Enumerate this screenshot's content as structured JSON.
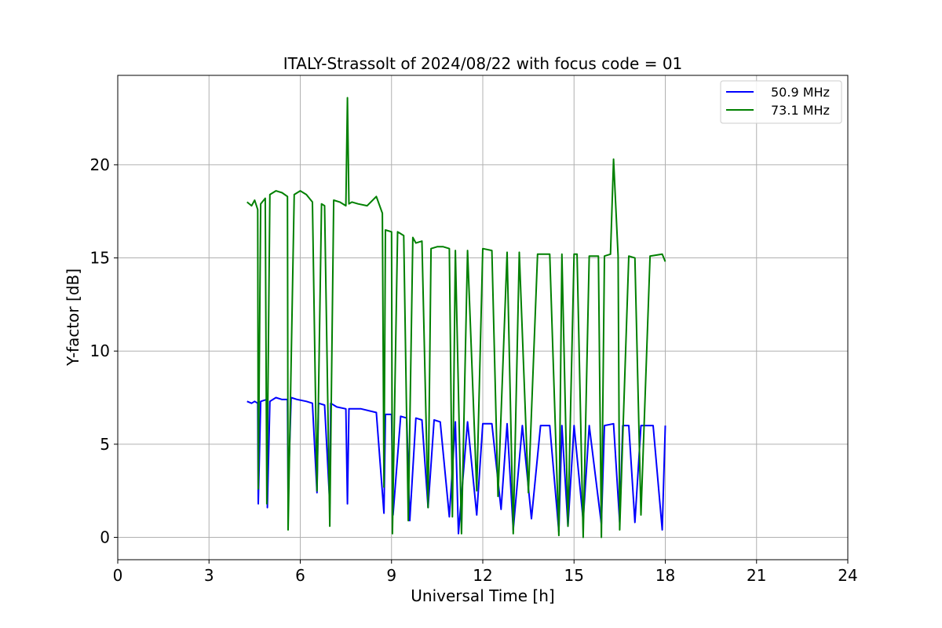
{
  "chart_data": {
    "type": "line",
    "title": "ITALY-Strassolt of 2024/08/22 with focus code = 01",
    "xlabel": "Universal Time [h]",
    "ylabel": "Y-factor [dB]",
    "xlim": [
      0,
      24
    ],
    "ylim": [
      -1.2,
      24.8
    ],
    "xticks": [
      0,
      3,
      6,
      9,
      12,
      15,
      18,
      21,
      24
    ],
    "yticks": [
      0,
      5,
      10,
      15,
      20
    ],
    "grid": true,
    "legend_position": "top-right",
    "series": [
      {
        "name": "50.9 MHz",
        "color": "#0000ff",
        "x": [
          4.25,
          4.4,
          4.5,
          4.6,
          4.62,
          4.7,
          4.9,
          4.92,
          5.0,
          5.2,
          5.4,
          5.58,
          5.6,
          5.7,
          5.9,
          6.2,
          6.4,
          6.55,
          6.6,
          6.8,
          6.97,
          7.0,
          7.2,
          7.5,
          7.55,
          7.6,
          8.0,
          8.5,
          8.75,
          8.8,
          9.0,
          9.05,
          9.3,
          9.5,
          9.6,
          9.8,
          10.0,
          10.2,
          10.4,
          10.6,
          10.9,
          11.1,
          11.2,
          11.5,
          11.8,
          12.0,
          12.3,
          12.6,
          12.8,
          13.0,
          13.3,
          13.6,
          13.9,
          14.2,
          14.5,
          14.6,
          14.8,
          15.0,
          15.3,
          15.5,
          15.9,
          16.0,
          16.3,
          16.5,
          16.6,
          16.8,
          17.0,
          17.2,
          17.6,
          17.9,
          18.0
        ],
        "y": [
          7.3,
          7.2,
          7.3,
          7.2,
          1.8,
          7.3,
          7.4,
          1.6,
          7.3,
          7.5,
          7.4,
          7.4,
          2.3,
          7.5,
          7.4,
          7.3,
          7.2,
          2.4,
          7.2,
          7.1,
          1.8,
          7.2,
          7.0,
          6.9,
          1.8,
          6.9,
          6.9,
          6.7,
          1.3,
          6.6,
          6.6,
          1.2,
          6.5,
          6.4,
          0.9,
          6.4,
          6.3,
          1.6,
          6.3,
          6.2,
          1.1,
          6.2,
          0.2,
          6.2,
          1.2,
          6.1,
          6.1,
          1.5,
          6.1,
          0.4,
          6.0,
          1.0,
          6.0,
          6.0,
          0.3,
          6.0,
          0.6,
          6.0,
          0.9,
          6.0,
          0.7,
          6.0,
          6.1,
          0.8,
          6.0,
          6.0,
          0.8,
          6.0,
          6.0,
          0.4,
          6.0
        ]
      },
      {
        "name": "73.1 MHz",
        "color": "#008000",
        "x": [
          4.25,
          4.4,
          4.5,
          4.6,
          4.62,
          4.7,
          4.85,
          4.9,
          5.0,
          5.2,
          5.4,
          5.58,
          5.6,
          5.8,
          6.0,
          6.2,
          6.4,
          6.55,
          6.7,
          6.8,
          6.97,
          7.1,
          7.3,
          7.5,
          7.55,
          7.6,
          7.7,
          7.9,
          8.2,
          8.5,
          8.7,
          8.75,
          8.8,
          9.0,
          9.03,
          9.2,
          9.4,
          9.55,
          9.7,
          9.8,
          10.0,
          10.2,
          10.3,
          10.5,
          10.7,
          10.9,
          11.0,
          11.1,
          11.3,
          11.5,
          11.8,
          12.0,
          12.3,
          12.5,
          12.8,
          13.0,
          13.2,
          13.5,
          13.8,
          14.0,
          14.2,
          14.5,
          14.6,
          14.8,
          15.0,
          15.1,
          15.3,
          15.5,
          15.8,
          15.9,
          16.0,
          16.2,
          16.3,
          16.45,
          16.5,
          16.8,
          17.0,
          17.2,
          17.5,
          17.9,
          18.0
        ],
        "y": [
          18.0,
          17.8,
          18.1,
          17.6,
          2.6,
          17.9,
          18.2,
          1.8,
          18.4,
          18.6,
          18.5,
          18.3,
          0.4,
          18.4,
          18.6,
          18.4,
          18.0,
          2.5,
          17.9,
          17.8,
          0.6,
          18.1,
          18.0,
          17.8,
          23.6,
          17.9,
          18.0,
          17.9,
          17.8,
          18.3,
          17.4,
          2.7,
          16.5,
          16.4,
          0.2,
          16.4,
          16.2,
          0.9,
          16.1,
          15.8,
          15.9,
          1.6,
          15.5,
          15.6,
          15.6,
          15.5,
          1.1,
          15.4,
          0.2,
          15.4,
          2.5,
          15.5,
          15.4,
          2.2,
          15.3,
          0.2,
          15.3,
          2.4,
          15.2,
          15.2,
          15.2,
          0.1,
          15.2,
          0.6,
          15.2,
          15.2,
          0.0,
          15.1,
          15.1,
          0.0,
          15.1,
          15.2,
          20.3,
          15.1,
          0.4,
          15.1,
          15.0,
          1.2,
          15.1,
          15.2,
          14.8
        ]
      }
    ]
  }
}
